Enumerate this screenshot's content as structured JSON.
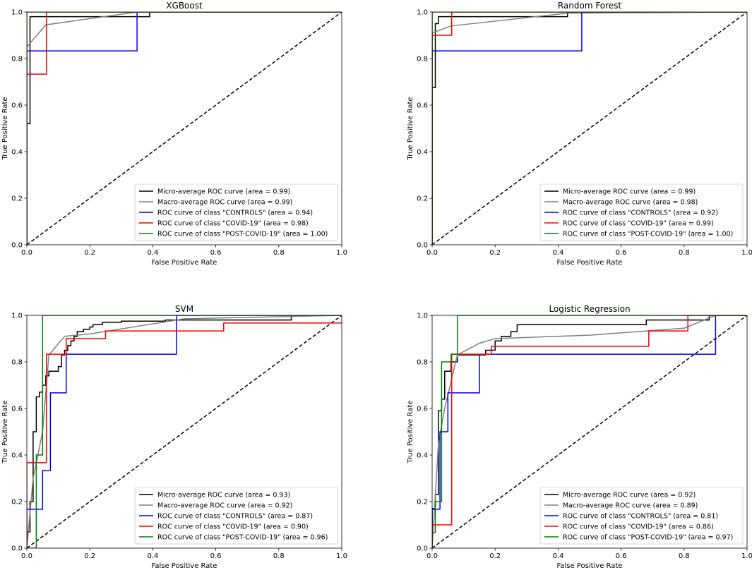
{
  "figure": {
    "type": "roc-grid"
  },
  "colors": {
    "micro": "#000000",
    "macro": "#808080",
    "controls": "#0000ff",
    "covid": "#ff0000",
    "post_covid": "#008000",
    "chance": "#000000"
  },
  "chart_data": [
    {
      "type": "line",
      "title": "XGBoost",
      "xlabel": "False Positive Rate",
      "ylabel": "True Positive Rate",
      "xlim": [
        0,
        1
      ],
      "ylim": [
        0,
        1
      ],
      "xticks": [
        "0.0",
        "0.2",
        "0.4",
        "0.6",
        "0.8",
        "1.0"
      ],
      "yticks": [
        "0.0",
        "0.2",
        "0.4",
        "0.6",
        "0.8",
        "1.0"
      ],
      "legend_position": "bottom-right",
      "series": [
        {
          "name": "Micro-average ROC curve (area = 0.99)",
          "color_key": "micro",
          "x": [
            0,
            0,
            0.01,
            0.01,
            0.39,
            0.39,
            1
          ],
          "y": [
            0,
            0.52,
            0.52,
            0.98,
            0.98,
            1.0,
            1.0
          ]
        },
        {
          "name": "Macro-average ROC curve (area = 0.99)",
          "color_key": "macro",
          "x": [
            0,
            0,
            0.06,
            0.35,
            1
          ],
          "y": [
            0,
            0.85,
            0.945,
            1.0,
            1.0
          ]
        },
        {
          "name": "ROC curve of class \"CONTROLS\" (area = 0.94)",
          "color_key": "controls",
          "x": [
            0,
            0,
            0.35,
            0.35,
            1
          ],
          "y": [
            0,
            0.833,
            0.833,
            1.0,
            1.0
          ]
        },
        {
          "name": "ROC curve of class \"COVID-19\" (area = 0.98)",
          "color_key": "covid",
          "x": [
            0,
            0,
            0.062,
            0.062,
            1
          ],
          "y": [
            0,
            0.733,
            0.733,
            1.0,
            1.0
          ]
        },
        {
          "name": "ROC curve of class \"POST-COVID-19\" (area = 1.00)",
          "color_key": "post_covid",
          "x": [
            0,
            0,
            1
          ],
          "y": [
            0,
            1.0,
            1.0
          ]
        }
      ]
    },
    {
      "type": "line",
      "title": "Random Forest",
      "xlabel": "False Positive Rate",
      "ylabel": "True Positive Rate",
      "xlim": [
        0,
        1
      ],
      "ylim": [
        0,
        1
      ],
      "xticks": [
        "0.0",
        "0.2",
        "0.4",
        "0.6",
        "0.8",
        "1.0"
      ],
      "yticks": [
        "0.0",
        "0.2",
        "0.4",
        "0.6",
        "0.8",
        "1.0"
      ],
      "legend_position": "bottom-right",
      "series": [
        {
          "name": "Micro-average ROC curve (area = 0.99)",
          "color_key": "micro",
          "x": [
            0,
            0,
            0.01,
            0.01,
            0.02,
            0.02,
            0.43,
            0.43,
            1
          ],
          "y": [
            0,
            0.675,
            0.675,
            0.95,
            0.95,
            0.98,
            0.98,
            1.0,
            1.0
          ]
        },
        {
          "name": "Macro-average ROC curve (area = 0.98)",
          "color_key": "macro",
          "x": [
            0,
            0,
            0.06,
            0.43,
            1
          ],
          "y": [
            0,
            0.91,
            0.94,
            0.995,
            1.0
          ]
        },
        {
          "name": "ROC curve of class \"CONTROLS\" (area = 0.92)",
          "color_key": "controls",
          "x": [
            0,
            0,
            0.475,
            0.475,
            1
          ],
          "y": [
            0,
            0.833,
            0.833,
            1.0,
            1.0
          ]
        },
        {
          "name": "ROC curve of class \"COVID-19\" (area = 0.99)",
          "color_key": "covid",
          "x": [
            0,
            0,
            0.062,
            0.062,
            1
          ],
          "y": [
            0,
            0.9,
            0.9,
            1.0,
            1.0
          ]
        },
        {
          "name": "ROC curve of class \"POST-COVID-19\" (area = 1.00)",
          "color_key": "post_covid",
          "x": [
            0,
            0,
            1
          ],
          "y": [
            0,
            1.0,
            1.0
          ]
        }
      ]
    },
    {
      "type": "line",
      "title": "SVM",
      "xlabel": "False Positive Rate",
      "ylabel": "True Positive Rate",
      "xlim": [
        0,
        1
      ],
      "ylim": [
        0,
        1
      ],
      "xticks": [
        "0.0",
        "0.2",
        "0.4",
        "0.6",
        "0.8",
        "1.0"
      ],
      "yticks": [
        "0.0",
        "0.2",
        "0.4",
        "0.6",
        "0.8",
        "1.0"
      ],
      "legend_position": "bottom-right",
      "series": [
        {
          "name": "Micro-average ROC curve (area = 0.93)",
          "color_key": "micro",
          "x": [
            0,
            0,
            0.01,
            0.01,
            0.02,
            0.02,
            0.03,
            0.03,
            0.04,
            0.04,
            0.05,
            0.05,
            0.06,
            0.06,
            0.07,
            0.07,
            0.1,
            0.1,
            0.11,
            0.11,
            0.12,
            0.12,
            0.13,
            0.13,
            0.14,
            0.14,
            0.15,
            0.15,
            0.16,
            0.16,
            0.18,
            0.18,
            0.2,
            0.2,
            0.21,
            0.21,
            0.24,
            0.24,
            0.3,
            0.3,
            0.44,
            0.44,
            0.84,
            0.84,
            1
          ],
          "y": [
            0,
            0.07,
            0.07,
            0.2,
            0.2,
            0.5,
            0.5,
            0.65,
            0.65,
            0.67,
            0.67,
            0.7,
            0.7,
            0.74,
            0.74,
            0.76,
            0.76,
            0.78,
            0.78,
            0.83,
            0.83,
            0.85,
            0.85,
            0.87,
            0.87,
            0.89,
            0.89,
            0.91,
            0.91,
            0.93,
            0.93,
            0.94,
            0.94,
            0.95,
            0.95,
            0.96,
            0.96,
            0.97,
            0.97,
            0.975,
            0.975,
            0.98,
            0.98,
            1.0,
            1.0
          ]
        },
        {
          "name": "Macro-average ROC curve (area = 0.92)",
          "color_key": "macro",
          "x": [
            0,
            0.02,
            0.05,
            0.07,
            0.12,
            0.2,
            0.5,
            1
          ],
          "y": [
            0,
            0.3,
            0.5,
            0.83,
            0.91,
            0.92,
            0.985,
            1.0
          ]
        },
        {
          "name": "ROC curve of class \"CONTROLS\" (area = 0.87)",
          "color_key": "controls",
          "x": [
            0,
            0,
            0.05,
            0.05,
            0.075,
            0.075,
            0.125,
            0.125,
            0.475,
            0.475,
            1
          ],
          "y": [
            0,
            0.167,
            0.167,
            0.333,
            0.333,
            0.667,
            0.667,
            0.833,
            0.833,
            1.0,
            1.0
          ]
        },
        {
          "name": "ROC curve of class \"COVID-19\" (area = 0.90)",
          "color_key": "covid",
          "x": [
            0,
            0,
            0.062,
            0.062,
            0.125,
            0.125,
            0.25,
            0.25,
            0.625,
            0.625,
            1
          ],
          "y": [
            0,
            0.367,
            0.367,
            0.833,
            0.833,
            0.9,
            0.9,
            0.933,
            0.933,
            0.967,
            0.967
          ]
        },
        {
          "name": "ROC curve of class \"POST-COVID-19\" (area = 0.96)",
          "color_key": "post_covid",
          "x": [
            0,
            0.03,
            0.03,
            0.05,
            0.05,
            1
          ],
          "y": [
            0,
            0,
            0.4,
            0.4,
            1.0,
            1.0
          ]
        }
      ]
    },
    {
      "type": "line",
      "title": "Logistic Regression",
      "xlabel": "False Positive Rate",
      "ylabel": "True Positive Rate",
      "xlim": [
        0,
        1
      ],
      "ylim": [
        0,
        1
      ],
      "xticks": [
        "0.0",
        "0.2",
        "0.4",
        "0.6",
        "0.8",
        "1.0"
      ],
      "yticks": [
        "0.0",
        "0.2",
        "0.4",
        "0.6",
        "0.8",
        "1.0"
      ],
      "legend_position": "bottom-right",
      "series": [
        {
          "name": "Micro-average ROC curve (area = 0.92)",
          "color_key": "micro",
          "x": [
            0,
            0,
            0.01,
            0.01,
            0.02,
            0.02,
            0.03,
            0.03,
            0.04,
            0.04,
            0.06,
            0.06,
            0.08,
            0.08,
            0.17,
            0.17,
            0.2,
            0.2,
            0.22,
            0.22,
            0.25,
            0.25,
            0.27,
            0.27,
            0.68,
            0.68,
            0.88,
            0.88,
            1
          ],
          "y": [
            0,
            0.17,
            0.17,
            0.23,
            0.23,
            0.59,
            0.59,
            0.64,
            0.64,
            0.76,
            0.76,
            0.8,
            0.8,
            0.83,
            0.83,
            0.85,
            0.85,
            0.89,
            0.89,
            0.91,
            0.91,
            0.93,
            0.93,
            0.96,
            0.96,
            0.98,
            0.98,
            1.0,
            1.0
          ]
        },
        {
          "name": "Macro-average ROC curve (area = 0.89)",
          "color_key": "macro",
          "x": [
            0,
            0.02,
            0.04,
            0.08,
            0.15,
            0.2,
            0.5,
            0.8,
            0.9,
            1
          ],
          "y": [
            0,
            0.45,
            0.6,
            0.83,
            0.88,
            0.9,
            0.915,
            0.945,
            1.0,
            1.0
          ]
        },
        {
          "name": "ROC curve of class \"CONTROLS\" (area = 0.81)",
          "color_key": "controls",
          "x": [
            0,
            0,
            0.025,
            0.025,
            0.05,
            0.05,
            0.15,
            0.15,
            0.9,
            0.9,
            1
          ],
          "y": [
            0,
            0.167,
            0.167,
            0.5,
            0.5,
            0.667,
            0.667,
            0.833,
            0.833,
            1.0,
            1.0
          ]
        },
        {
          "name": "ROC curve of class \"COVID-19\" (area = 0.86)",
          "color_key": "covid",
          "x": [
            0,
            0,
            0.062,
            0.062,
            0.188,
            0.188,
            0.688,
            0.688,
            0.812,
            0.812,
            1
          ],
          "y": [
            0,
            0.1,
            0.1,
            0.833,
            0.833,
            0.867,
            0.867,
            0.933,
            0.933,
            1.0,
            1.0
          ]
        },
        {
          "name": "ROC curve of class \"POST-COVID-19\" (area = 0.97)",
          "color_key": "post_covid",
          "x": [
            0,
            0,
            0.01,
            0.01,
            0.03,
            0.03,
            0.06,
            0.06,
            0.08,
            0.08,
            1
          ],
          "y": [
            0,
            0.067,
            0.067,
            0.2,
            0.2,
            0.8,
            0.8,
            0.833,
            0.833,
            1.0,
            1.0
          ]
        }
      ]
    }
  ]
}
